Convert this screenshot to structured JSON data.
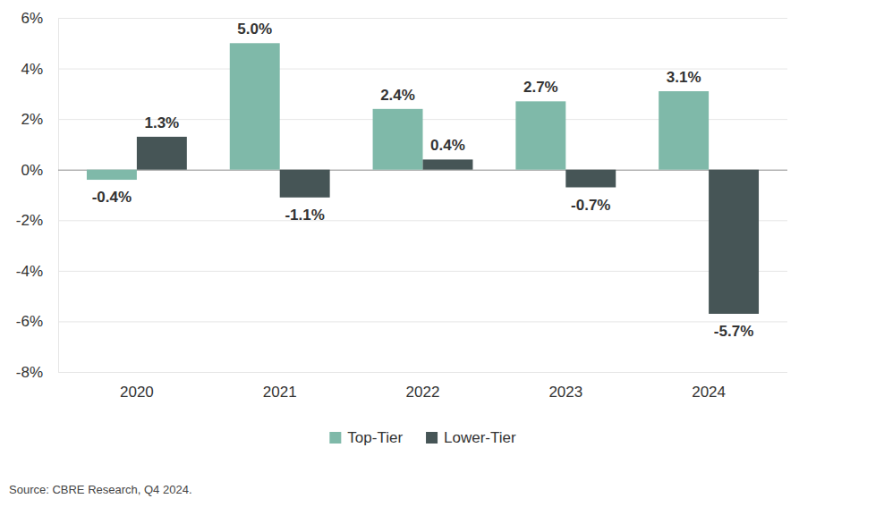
{
  "chart_data": {
    "type": "bar",
    "categories": [
      "2020",
      "2021",
      "2022",
      "2023",
      "2024"
    ],
    "series": [
      {
        "name": "Top-Tier",
        "color": "#7fb9a9",
        "values": [
          -0.4,
          5.0,
          2.4,
          2.7,
          3.1
        ],
        "value_labels": [
          "-0.4%",
          "5.0%",
          "2.4%",
          "2.7%",
          "3.1%"
        ]
      },
      {
        "name": "Lower-Tier",
        "color": "#465556",
        "values": [
          1.3,
          -1.1,
          0.4,
          -0.7,
          -5.7
        ],
        "value_labels": [
          "1.3%",
          "-1.1%",
          "0.4%",
          "-0.7%",
          "-5.7%"
        ]
      }
    ],
    "ylim": [
      -8,
      6
    ],
    "yticks": [
      {
        "value": -8,
        "label": "-8%"
      },
      {
        "value": -6,
        "label": "-6%"
      },
      {
        "value": -4,
        "label": "-4%"
      },
      {
        "value": -2,
        "label": "-2%"
      },
      {
        "value": 0,
        "label": "0%"
      },
      {
        "value": 2,
        "label": "2%"
      },
      {
        "value": 4,
        "label": "4%"
      },
      {
        "value": 6,
        "label": "6%"
      }
    ],
    "grid": true,
    "data_labels": true,
    "legend": "bottom",
    "source": "Source: CBRE Research, Q4 2024."
  }
}
